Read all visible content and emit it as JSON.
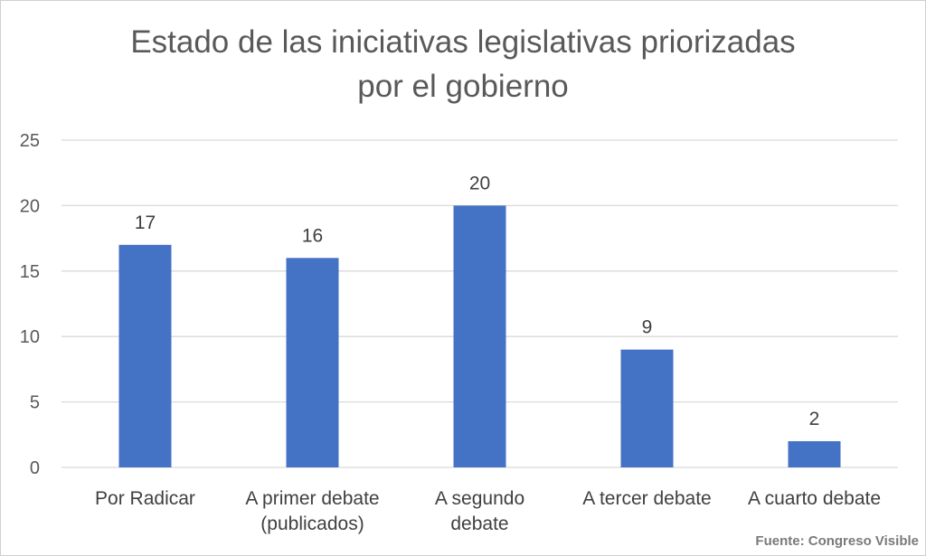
{
  "chart_data": {
    "type": "bar",
    "title_lines": [
      "Estado de las iniciativas legislativas priorizadas",
      "por el gobierno"
    ],
    "categories": [
      [
        "Por Radicar"
      ],
      [
        "A primer debate",
        "(publicados)"
      ],
      [
        "A segundo",
        "debate"
      ],
      [
        "A tercer debate"
      ],
      [
        "A cuarto debate"
      ]
    ],
    "values": [
      17,
      16,
      20,
      9,
      2
    ],
    "ylim": [
      0,
      25
    ],
    "yticks": [
      0,
      5,
      10,
      15,
      20,
      25
    ],
    "grid": true,
    "data_labels": true,
    "legend": "none",
    "bar_color": "#4472C4",
    "grid_color": "#d9d9d9"
  },
  "source": "Fuente: Congreso Visible"
}
